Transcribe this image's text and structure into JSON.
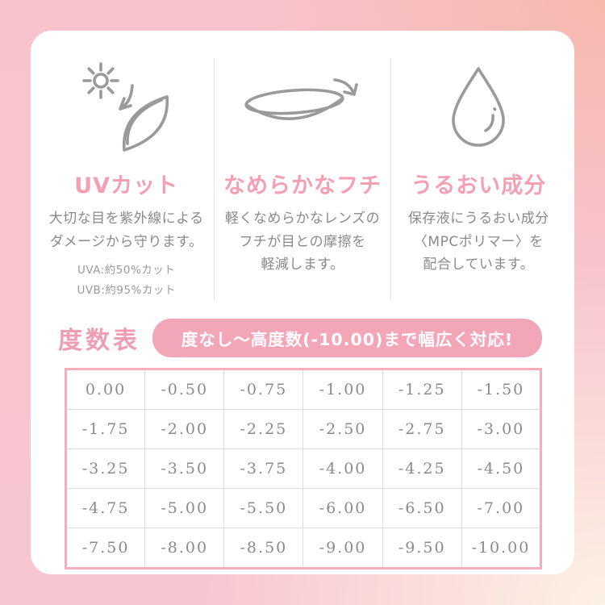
{
  "features": [
    {
      "icon": "uv-protection-icon",
      "title": "UVカット",
      "desc_lines": [
        "大切な目を紫外線による",
        "ダメージから守ります。"
      ],
      "notes": [
        "UVA:約50%カット",
        "UVB:約95%カット"
      ]
    },
    {
      "icon": "smooth-edge-lens-icon",
      "title": "なめらかなフチ",
      "desc_lines": [
        "軽くなめらかなレンズの",
        "フチが目との摩擦を",
        "軽減します。"
      ],
      "notes": []
    },
    {
      "icon": "moisture-drop-icon",
      "title": "うるおい成分",
      "desc_lines": [
        "保存液にうるおい成分",
        "〈MPCポリマー〉を",
        "配合しています。"
      ],
      "notes": []
    }
  ],
  "power_table": {
    "heading": "度数表",
    "badge": "度なし〜高度数(-10.00)まで幅広く対応!",
    "rows": [
      [
        "0.00",
        "-0.50",
        "-0.75",
        "-1.00",
        "-1.25",
        "-1.50"
      ],
      [
        "-1.75",
        "-2.00",
        "-2.25",
        "-2.50",
        "-2.75",
        "-3.00"
      ],
      [
        "-3.25",
        "-3.50",
        "-3.75",
        "-4.00",
        "-4.25",
        "-4.50"
      ],
      [
        "-4.75",
        "-5.00",
        "-5.50",
        "-6.00",
        "-6.50",
        "-7.00"
      ],
      [
        "-7.50",
        "-8.00",
        "-8.50",
        "-9.00",
        "-9.50",
        "-10.00"
      ]
    ]
  },
  "colors": {
    "title_pink": "#f3a0b5",
    "heading_pink": "#ef9db3",
    "badge_pink": "#f3a6b8",
    "table_border_pink": "#f4aebc",
    "text_gray": "#8a8a8a",
    "icon_gray": "#9a9a9a",
    "bg_pink": "#f8c4ce",
    "bg_salmon": "#f6b9ae",
    "bg_peach": "#fcf1e3"
  }
}
